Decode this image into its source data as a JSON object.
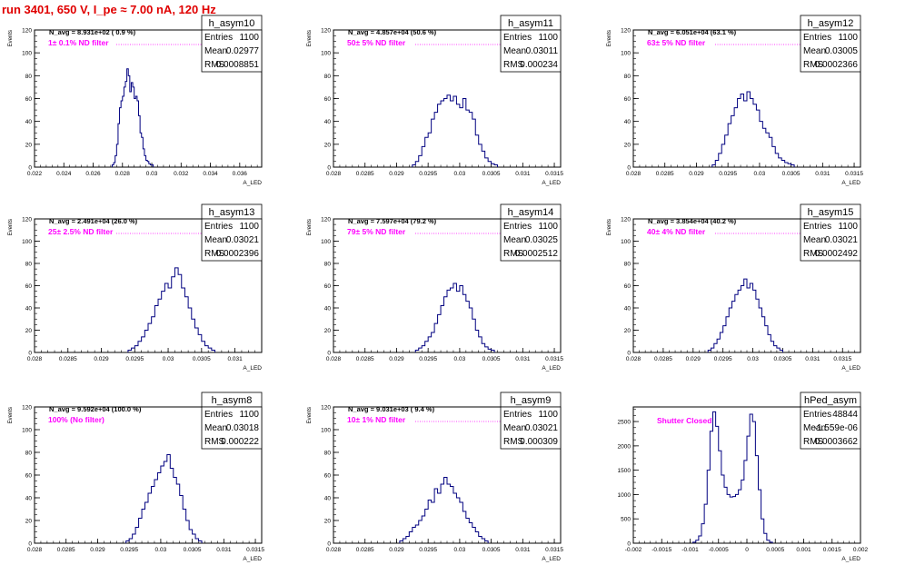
{
  "title": "run 3401,   650 V, I_pe ≈ 7.00 nA, 120 Hz",
  "chart_data": [
    {
      "type": "histogram",
      "name": "h_asym10",
      "navg": "N_avg = 8.931e+02 ( 0.9 %)",
      "filter": "1± 0.1% ND filter",
      "stats": {
        "entries_label": "Entries",
        "entries": "1100",
        "mean_label": "Mean",
        "mean": "0.02977",
        "rms_label": "RMS",
        "rms": "0.0008851"
      },
      "xlabel": "A_LED",
      "ylabel": "Events",
      "xlim": [
        0.022,
        0.0375
      ],
      "ylim": [
        0,
        120
      ],
      "xticks": [
        "0.022",
        "0.024",
        "0.026",
        "0.028",
        "0.03",
        "0.032",
        "0.034",
        "0.036"
      ],
      "xtick_values": [
        0.022,
        0.024,
        0.026,
        0.028,
        0.03,
        0.032,
        0.034,
        0.036
      ],
      "yticks": [
        "0",
        "20",
        "40",
        "60",
        "80",
        "100",
        "120"
      ],
      "ytick_values": [
        0,
        20,
        40,
        60,
        80,
        100,
        120
      ],
      "bins": {
        "start": 0.0273,
        "width": 0.0001,
        "counts": [
          2,
          4,
          10,
          20,
          38,
          52,
          58,
          62,
          70,
          75,
          86,
          80,
          66,
          74,
          70,
          60,
          62,
          58,
          45,
          30,
          26,
          16,
          10,
          6,
          5,
          3,
          2,
          2
        ]
      }
    },
    {
      "type": "histogram",
      "name": "h_asym11",
      "navg": "N_avg = 4.857e+04 (50.6 %)",
      "filter": "50± 5% ND filter",
      "stats": {
        "entries_label": "Entries",
        "entries": "1100",
        "mean_label": "Mean",
        "mean": "0.03011",
        "rms_label": "RMS",
        "rms": "0.000234"
      },
      "xlabel": "A_LED",
      "ylabel": "Events",
      "xlim": [
        0.028,
        0.0316
      ],
      "ylim": [
        0,
        120
      ],
      "xticks": [
        "0.028",
        "0.0285",
        "0.029",
        "0.0295",
        "0.03",
        "0.0305",
        "0.031",
        "0.0315"
      ],
      "xtick_values": [
        0.028,
        0.0285,
        0.029,
        0.0295,
        0.03,
        0.0305,
        0.031,
        0.0315
      ],
      "yticks": [
        "0",
        "20",
        "40",
        "60",
        "80",
        "100",
        "120"
      ],
      "ytick_values": [
        0,
        20,
        40,
        60,
        80,
        100,
        120
      ],
      "bins": {
        "start": 0.02925,
        "width": 5e-05,
        "counts": [
          2,
          5,
          10,
          18,
          26,
          30,
          42,
          48,
          55,
          58,
          60,
          63,
          58,
          62,
          55,
          52,
          60,
          50,
          48,
          42,
          28,
          20,
          14,
          8,
          5,
          3,
          2
        ]
      }
    },
    {
      "type": "histogram",
      "name": "h_asym12",
      "navg": "N_avg = 6.051e+04 (63.1 %)",
      "filter": "63± 5% ND filter",
      "stats": {
        "entries_label": "Entries",
        "entries": "1100",
        "mean_label": "Mean",
        "mean": "0.03005",
        "rms_label": "RMS",
        "rms": "0.0002366"
      },
      "xlabel": "A_LED",
      "ylabel": "Events",
      "xlim": [
        0.028,
        0.0316
      ],
      "ylim": [
        0,
        120
      ],
      "xticks": [
        "0.028",
        "0.0285",
        "0.029",
        "0.0295",
        "0.03",
        "0.0305",
        "0.031",
        "0.0315"
      ],
      "xtick_values": [
        0.028,
        0.0285,
        0.029,
        0.0295,
        0.03,
        0.0305,
        0.031,
        0.0315
      ],
      "yticks": [
        "0",
        "20",
        "40",
        "60",
        "80",
        "100",
        "120"
      ],
      "ytick_values": [
        0,
        20,
        40,
        60,
        80,
        100,
        120
      ],
      "bins": {
        "start": 0.02925,
        "width": 5e-05,
        "counts": [
          2,
          6,
          12,
          20,
          28,
          38,
          45,
          52,
          60,
          64,
          58,
          66,
          60,
          55,
          50,
          40,
          34,
          30,
          26,
          18,
          12,
          8,
          6,
          4,
          3,
          2
        ]
      }
    },
    {
      "type": "histogram",
      "name": "h_asym13",
      "navg": "N_avg = 2.491e+04 (26.0 %)",
      "filter": "25± 2.5% ND filter",
      "stats": {
        "entries_label": "Entries",
        "entries": "1100",
        "mean_label": "Mean",
        "mean": "0.03021",
        "rms_label": "RMS",
        "rms": "0.0002396"
      },
      "xlabel": "A_LED",
      "ylabel": "Events",
      "xlim": [
        0.028,
        0.0314
      ],
      "ylim": [
        0,
        120
      ],
      "xticks": [
        "0.028",
        "0.0285",
        "0.029",
        "0.0295",
        "0.03",
        "0.0305",
        "0.031"
      ],
      "xtick_values": [
        0.028,
        0.0285,
        0.029,
        0.0295,
        0.03,
        0.0305,
        0.031
      ],
      "yticks": [
        "0",
        "20",
        "40",
        "60",
        "80",
        "100",
        "120"
      ],
      "ytick_values": [
        0,
        20,
        40,
        60,
        80,
        100,
        120
      ],
      "bins": {
        "start": 0.0294,
        "width": 5e-05,
        "counts": [
          2,
          4,
          6,
          10,
          14,
          20,
          26,
          32,
          42,
          48,
          55,
          62,
          58,
          68,
          76,
          70,
          58,
          50,
          40,
          30,
          22,
          16,
          10,
          6,
          4,
          2
        ]
      }
    },
    {
      "type": "histogram",
      "name": "h_asym14",
      "navg": "N_avg = 7.597e+04 (79.2 %)",
      "filter": "79± 5% ND filter",
      "stats": {
        "entries_label": "Entries",
        "entries": "1100",
        "mean_label": "Mean",
        "mean": "0.03025",
        "rms_label": "RMS",
        "rms": "0.0002512"
      },
      "xlabel": "A_LED",
      "ylabel": "Events",
      "xlim": [
        0.028,
        0.0316
      ],
      "ylim": [
        0,
        120
      ],
      "xticks": [
        "0.028",
        "0.0285",
        "0.029",
        "0.0295",
        "0.03",
        "0.0305",
        "0.031",
        "0.0315"
      ],
      "xtick_values": [
        0.028,
        0.0285,
        0.029,
        0.0295,
        0.03,
        0.0305,
        0.031,
        0.0315
      ],
      "yticks": [
        "0",
        "20",
        "40",
        "60",
        "80",
        "100",
        "120"
      ],
      "ytick_values": [
        0,
        20,
        40,
        60,
        80,
        100,
        120
      ],
      "bins": {
        "start": 0.0293,
        "width": 5e-05,
        "counts": [
          2,
          4,
          6,
          10,
          14,
          18,
          26,
          34,
          42,
          50,
          56,
          58,
          62,
          55,
          60,
          52,
          46,
          40,
          30,
          20,
          14,
          8,
          5,
          3,
          2
        ]
      }
    },
    {
      "type": "histogram",
      "name": "h_asym15",
      "navg": "N_avg = 3.854e+04 (40.2 %)",
      "filter": "40± 4% ND filter",
      "stats": {
        "entries_label": "Entries",
        "entries": "1100",
        "mean_label": "Mean",
        "mean": "0.03021",
        "rms_label": "RMS",
        "rms": "0.0002492"
      },
      "xlabel": "A_LED",
      "ylabel": "Events",
      "xlim": [
        0.028,
        0.0318
      ],
      "ylim": [
        0,
        120
      ],
      "xticks": [
        "0.028",
        "0.0285",
        "0.029",
        "0.0295",
        "0.03",
        "0.0305",
        "0.031",
        "0.0315"
      ],
      "xtick_values": [
        0.028,
        0.0285,
        0.029,
        0.0295,
        0.03,
        0.0305,
        0.031,
        0.0315
      ],
      "yticks": [
        "0",
        "20",
        "40",
        "60",
        "80",
        "100",
        "120"
      ],
      "ytick_values": [
        0,
        20,
        40,
        60,
        80,
        100,
        120
      ],
      "bins": {
        "start": 0.02925,
        "width": 5e-05,
        "counts": [
          2,
          4,
          8,
          12,
          18,
          24,
          32,
          40,
          46,
          52,
          56,
          60,
          66,
          58,
          62,
          56,
          48,
          40,
          32,
          24,
          16,
          10,
          6,
          4,
          2
        ]
      }
    },
    {
      "type": "histogram",
      "name": "h_asym8",
      "navg": "N_avg = 9.592e+04 (100.0 %)",
      "filter": "100% (No filter)",
      "stats": {
        "entries_label": "Entries",
        "entries": "1100",
        "mean_label": "Mean",
        "mean": "0.03018",
        "rms_label": "RMS",
        "rms": "0.000222"
      },
      "xlabel": "A_LED",
      "ylabel": "Events",
      "xlim": [
        0.028,
        0.0316
      ],
      "ylim": [
        0,
        120
      ],
      "xticks": [
        "0.028",
        "0.0285",
        "0.029",
        "0.0295",
        "0.03",
        "0.0305",
        "0.031",
        "0.0315"
      ],
      "xtick_values": [
        0.028,
        0.0285,
        0.029,
        0.0295,
        0.03,
        0.0305,
        0.031,
        0.0315
      ],
      "yticks": [
        "0",
        "20",
        "40",
        "60",
        "80",
        "100",
        "120"
      ],
      "ytick_values": [
        0,
        20,
        40,
        60,
        80,
        100,
        120
      ],
      "bins": {
        "start": 0.02945,
        "width": 5e-05,
        "counts": [
          2,
          4,
          8,
          14,
          22,
          30,
          36,
          44,
          50,
          56,
          62,
          68,
          72,
          78,
          66,
          58,
          52,
          42,
          30,
          20,
          12,
          8,
          4,
          2
        ]
      }
    },
    {
      "type": "histogram",
      "name": "h_asym9",
      "navg": "N_avg = 9.031e+03 ( 9.4 %)",
      "filter": "10± 1% ND filter",
      "stats": {
        "entries_label": "Entries",
        "entries": "1100",
        "mean_label": "Mean",
        "mean": "0.03021",
        "rms_label": "RMS",
        "rms": "0.000309"
      },
      "xlabel": "A_LED",
      "ylabel": "Events",
      "xlim": [
        0.028,
        0.0316
      ],
      "ylim": [
        0,
        120
      ],
      "xticks": [
        "0.028",
        "0.0285",
        "0.029",
        "0.0295",
        "0.03",
        "0.0305",
        "0.031",
        "0.0315"
      ],
      "xtick_values": [
        0.028,
        0.0285,
        0.029,
        0.0295,
        0.03,
        0.0305,
        0.031,
        0.0315
      ],
      "yticks": [
        "0",
        "20",
        "40",
        "60",
        "80",
        "100",
        "120"
      ],
      "ytick_values": [
        0,
        20,
        40,
        60,
        80,
        100,
        120
      ],
      "bins": {
        "start": 0.02905,
        "width": 5e-05,
        "counts": [
          2,
          4,
          6,
          10,
          14,
          16,
          20,
          24,
          30,
          38,
          36,
          48,
          44,
          52,
          58,
          52,
          50,
          44,
          40,
          36,
          28,
          22,
          18,
          14,
          10,
          6,
          4,
          2
        ]
      }
    },
    {
      "type": "histogram",
      "name": "hPed_asym",
      "navg": "",
      "filter": "Shutter Closed",
      "stats": {
        "entries_label": "Entries",
        "entries": "48844",
        "mean_label": "Mean",
        "mean": "-1.559e-06",
        "rms_label": "RMS",
        "rms": "0.0003662"
      },
      "xlabel": "A_LED",
      "ylabel": "",
      "xlim": [
        -0.002,
        0.002
      ],
      "ylim": [
        0,
        2800
      ],
      "xticks": [
        "-0.002",
        "-0.0015",
        "-0.001",
        "-0.0005",
        "0",
        "0.0005",
        "0.001",
        "0.0015",
        "0.002"
      ],
      "xtick_values": [
        -0.002,
        -0.0015,
        -0.001,
        -0.0005,
        0,
        0.0005,
        0.001,
        0.0015,
        0.002
      ],
      "yticks": [
        "0",
        "500",
        "1000",
        "1500",
        "2000",
        "2500"
      ],
      "ytick_values": [
        0,
        500,
        1000,
        1500,
        2000,
        2500
      ],
      "bins": {
        "start": -0.00095,
        "width": 5e-05,
        "counts": [
          20,
          60,
          150,
          400,
          800,
          1500,
          2300,
          2700,
          2400,
          1900,
          1400,
          1150,
          1000,
          950,
          960,
          1000,
          1100,
          1300,
          1700,
          2200,
          2650,
          2500,
          1800,
          1100,
          500,
          200,
          60,
          20
        ]
      }
    }
  ]
}
